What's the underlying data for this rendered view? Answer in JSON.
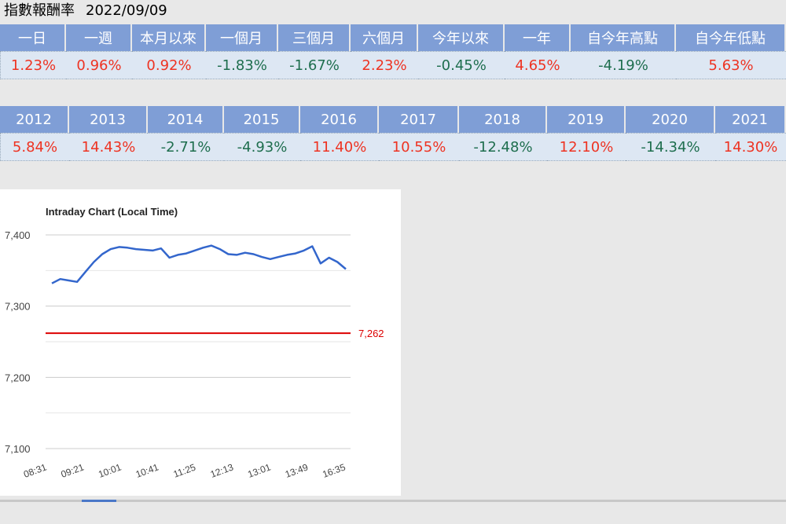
{
  "header": {
    "title": "指數報酬率",
    "date": "2022/09/09"
  },
  "period_returns": {
    "labels": [
      "一日",
      "一週",
      "本月以來",
      "一個月",
      "三個月",
      "六個月",
      "今年以來",
      "一年",
      "自今年高點",
      "自今年低點"
    ],
    "values": [
      "1.23%",
      "0.96%",
      "0.92%",
      "-1.83%",
      "-1.67%",
      "2.23%",
      "-0.45%",
      "4.65%",
      "-4.19%",
      "5.63%"
    ],
    "signs": [
      "pos",
      "pos",
      "pos",
      "neg",
      "neg",
      "pos",
      "neg",
      "pos",
      "neg",
      "pos"
    ]
  },
  "yearly_returns": {
    "labels": [
      "2012",
      "2013",
      "2014",
      "2015",
      "2016",
      "2017",
      "2018",
      "2019",
      "2020",
      "2021"
    ],
    "values": [
      "5.84%",
      "14.43%",
      "-2.71%",
      "-4.93%",
      "11.40%",
      "10.55%",
      "-12.48%",
      "12.10%",
      "-14.34%",
      "14.30%"
    ],
    "signs": [
      "pos",
      "pos",
      "neg",
      "neg",
      "pos",
      "pos",
      "neg",
      "pos",
      "neg",
      "pos"
    ]
  },
  "chart_data": {
    "type": "line",
    "title": "Intraday Chart (Local Time)",
    "xlabel": "",
    "ylabel": "",
    "ylim": [
      7100,
      7400
    ],
    "yticks": [
      7100,
      7200,
      7300,
      7400
    ],
    "ytick_labels": [
      "7,100",
      "7,200",
      "7,300",
      "7,400"
    ],
    "xtick_labels": [
      "08:31",
      "09:21",
      "10:01",
      "10:41",
      "11:25",
      "12:13",
      "13:01",
      "13:49",
      "16:35"
    ],
    "grid": true,
    "series": [
      {
        "color": "#3366cc",
        "values": [
          7332,
          7338,
          7336,
          7334,
          7348,
          7362,
          7373,
          7380,
          7383,
          7382,
          7380,
          7379,
          7378,
          7381,
          7368,
          7372,
          7374,
          7378,
          7382,
          7385,
          7380,
          7373,
          7372,
          7375,
          7373,
          7369,
          7366,
          7369,
          7372,
          7374,
          7378,
          7384,
          7360,
          7368,
          7362,
          7352
        ]
      }
    ],
    "reference_line": {
      "value": 7262,
      "label": "7,262",
      "color": "#dd0000"
    }
  }
}
